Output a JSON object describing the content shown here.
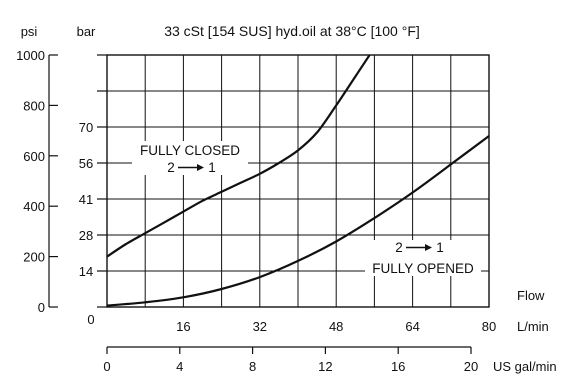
{
  "chart_data": {
    "type": "line",
    "title": "33 cSt [154 SUS] hyd.oil at 38°C [100 °F]",
    "y_units": {
      "psi": "psi",
      "bar": "bar"
    },
    "x_label": "Flow",
    "x_units": {
      "lpm": "L/min",
      "gpm": "US gal/min"
    },
    "x_ticks_lpm": [
      "16",
      "32",
      "48",
      "64",
      "80"
    ],
    "x_origin_label": "0",
    "x_ticks_gpm": [
      "0",
      "4",
      "8",
      "12",
      "16",
      "20"
    ],
    "y_ticks_bar": [
      "14",
      "28",
      "41",
      "56",
      "70"
    ],
    "y_ticks_psi": [
      "0",
      "200",
      "400",
      "600",
      "800",
      "1000"
    ],
    "x_range_lpm": [
      0,
      80
    ],
    "y_range_bar": [
      0,
      70
    ],
    "grid": true,
    "series": [
      {
        "name": "FULLY CLOSED 2 → 1",
        "x": [
          0,
          4,
          8,
          12,
          16,
          20,
          24,
          28,
          32,
          36,
          40,
          44,
          48,
          52,
          55
        ],
        "y": [
          14,
          17.5,
          20.5,
          23.5,
          26.5,
          29.5,
          32,
          34.5,
          37,
          40,
          43.5,
          48.5,
          56,
          64,
          70
        ]
      },
      {
        "name": "2 → 1 FULLY OPENED",
        "x": [
          0,
          8,
          16,
          24,
          32,
          40,
          48,
          56,
          64,
          72,
          80
        ],
        "y": [
          0.4,
          1.3,
          2.7,
          5,
          8.3,
          12.8,
          18.2,
          24.7,
          31.8,
          39.6,
          47.5
        ]
      }
    ],
    "annotations": {
      "closed_line1": "FULLY CLOSED",
      "closed_line2": "2",
      "closed_line3": "1",
      "opened_line1": "2",
      "opened_line2": "1",
      "opened_line3": "FULLY OPENED"
    }
  }
}
